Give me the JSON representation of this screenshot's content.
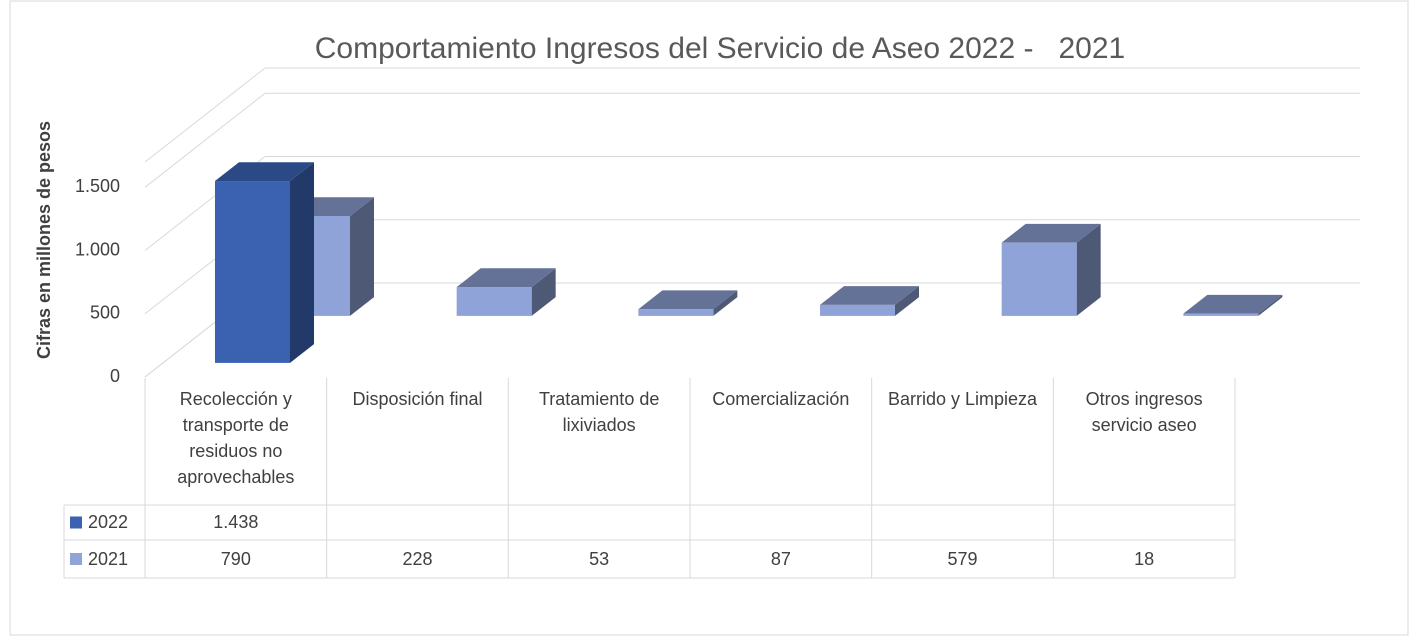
{
  "chart_data": {
    "type": "bar3d",
    "title": "Comportamiento Ingresos del Servicio de Aseo 2022 -   2021",
    "y_label": "Cifras en millones de pesos",
    "categories": [
      "Recolección y transporte de residuos no aprovechables",
      "Disposición final",
      "Tratamiento de lixiviados",
      "Comercialización",
      "Barrido y Limpieza",
      "Otros ingresos servicio aseo"
    ],
    "series": [
      {
        "name": "2022",
        "color": "#3a62b0",
        "values": [
          1438,
          null,
          null,
          null,
          null,
          null
        ],
        "value_labels": [
          "1.438",
          null,
          null,
          null,
          null,
          null
        ]
      },
      {
        "name": "2021",
        "color": "#8fa3d8",
        "values": [
          790,
          228,
          53,
          87,
          579,
          18
        ]
      }
    ],
    "ylim": [
      0,
      1700
    ],
    "yticks": [
      0,
      500,
      {
        "value": 1000,
        "label": "1.000"
      },
      {
        "value": 1500,
        "label": "1.500"
      }
    ],
    "grid": true,
    "legend": "table"
  }
}
